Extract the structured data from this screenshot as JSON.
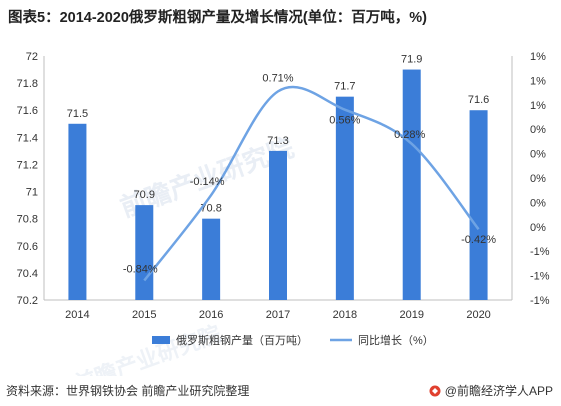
{
  "title": "图表5：2014-2020俄罗斯粗钢产量及增长情况(单位：百万吨，%)",
  "source": "资料来源：世界钢铁协会 前瞻产业研究院整理",
  "brand": "@前瞻经济学人APP",
  "watermark": "前瞻产业研究院",
  "colors": {
    "bar": "#3b7dd8",
    "line": "#6ea3e4",
    "axis": "#bfbfbf",
    "text": "#333333"
  },
  "chart_data": {
    "type": "bar",
    "categories": [
      "2014",
      "2015",
      "2016",
      "2017",
      "2018",
      "2019",
      "2020"
    ],
    "series": [
      {
        "name": "俄罗斯粗钢产量（百万吨）",
        "type": "bar",
        "axis": "left",
        "values": [
          71.5,
          70.9,
          70.8,
          71.3,
          71.7,
          71.9,
          71.6
        ],
        "labels": [
          "71.5",
          "70.9",
          "70.8",
          "71.3",
          "71.7",
          "71.9",
          "71.6"
        ]
      },
      {
        "name": "同比增长（%）",
        "type": "line",
        "axis": "right",
        "values": [
          null,
          -0.84,
          -0.14,
          0.71,
          0.56,
          0.28,
          -0.42
        ],
        "labels": [
          "",
          "-0.84%",
          "-0.14%",
          "0.71%",
          "0.56%",
          "0.28%",
          "-0.42%"
        ]
      }
    ],
    "y_left": {
      "min": 70.2,
      "max": 72,
      "ticks": [
        "70.2",
        "70.4",
        "70.6",
        "70.8",
        "71",
        "71.2",
        "71.4",
        "71.6",
        "71.8",
        "72"
      ]
    },
    "y_right": {
      "min": -1,
      "max": 1,
      "ticks": [
        "-1%",
        "-1%",
        "-1%",
        "0%",
        "0%",
        "0%",
        "0%",
        "0%",
        "1%",
        "1%",
        "1%"
      ]
    },
    "legend_position": "bottom"
  }
}
